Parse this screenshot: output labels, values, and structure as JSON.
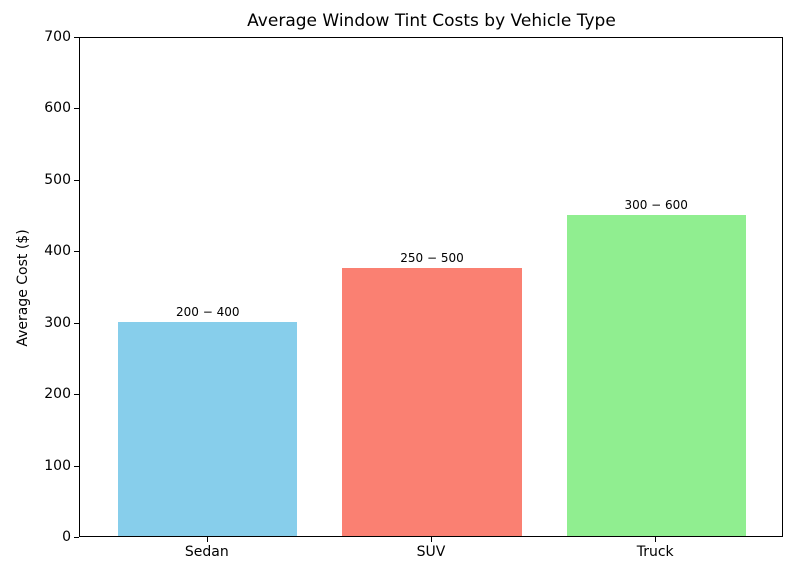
{
  "chart_data": {
    "type": "bar",
    "title": "Average Window Tint Costs by Vehicle Type",
    "xlabel": "",
    "ylabel": "Average Cost ($)",
    "categories": [
      "Sedan",
      "SUV",
      "Truck"
    ],
    "values": [
      300,
      375,
      450
    ],
    "bar_labels": [
      "200 − 400",
      "250 − 500",
      "300 − 600"
    ],
    "colors": [
      "#87CEEB",
      "#FA8072",
      "#90EE90"
    ],
    "ylim": [
      0,
      700
    ],
    "yticks": [
      0,
      100,
      200,
      300,
      400,
      500,
      600,
      700
    ],
    "grid": false,
    "legend": null
  }
}
